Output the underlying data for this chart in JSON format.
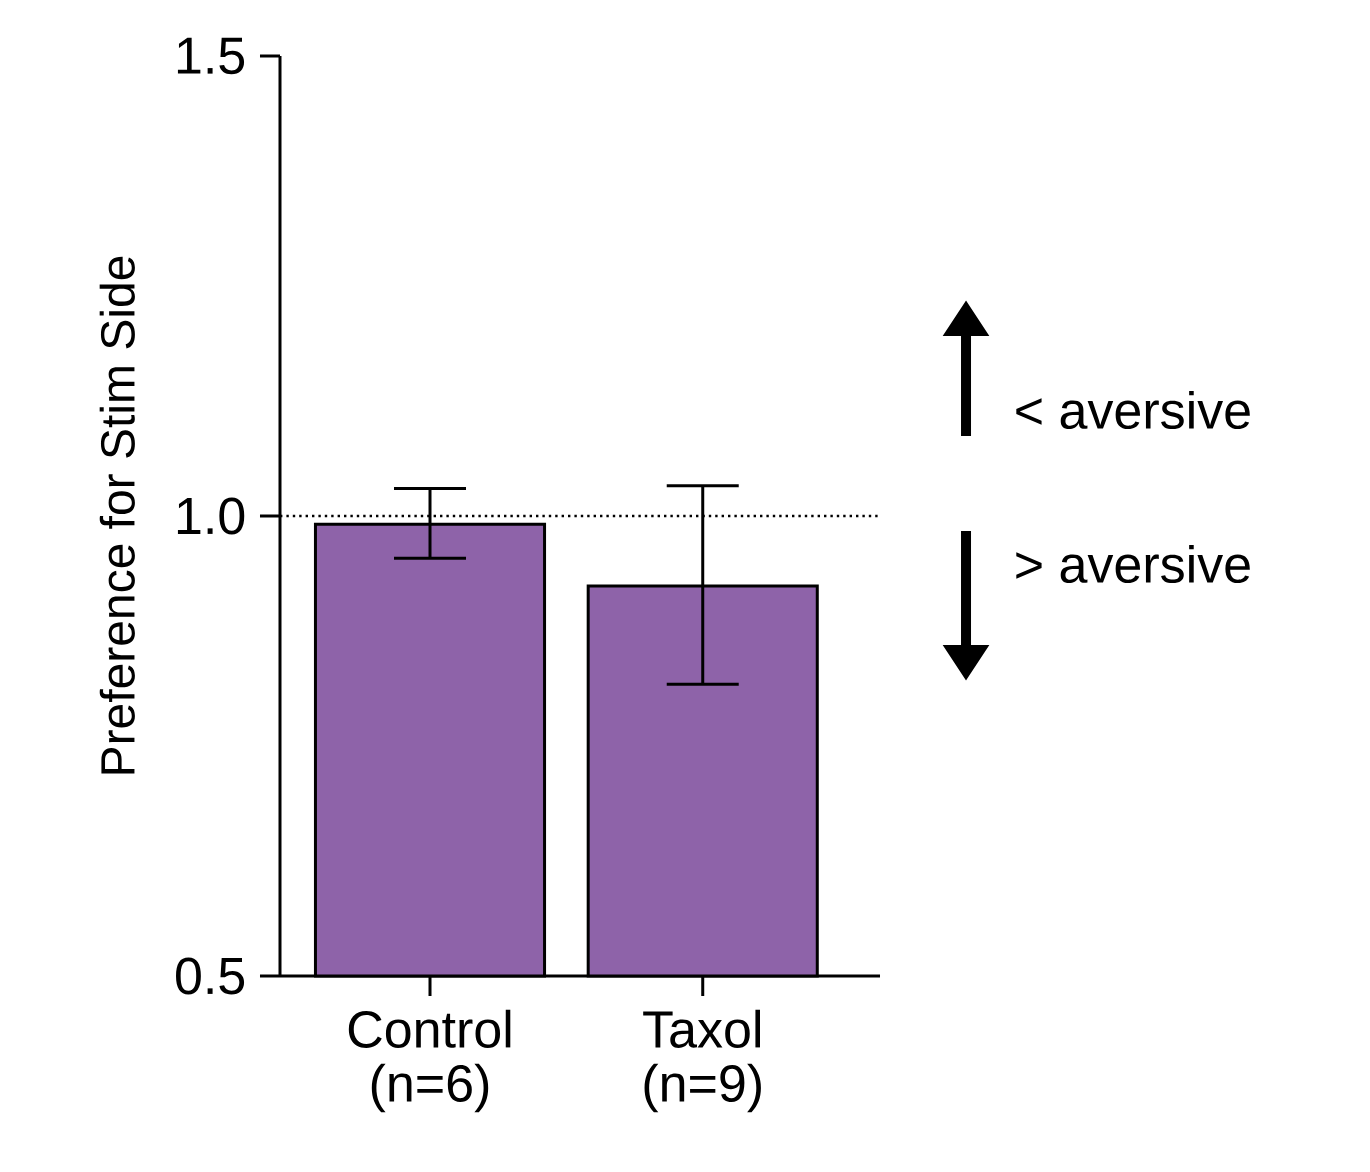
{
  "chart_data": {
    "type": "bar",
    "ylabel": "Preference for Stim Side",
    "categories": [
      "Control (n=6)",
      "Taxol (n=9)"
    ],
    "values": [
      0.991,
      0.924
    ],
    "errors": [
      [
        0.954,
        1.03
      ],
      [
        0.817,
        1.033
      ]
    ],
    "colors": [
      "#8e63a9",
      "#8e63a9"
    ],
    "ylim": [
      0.5,
      1.5
    ],
    "yticks": [
      0.5,
      {
        "value": 1.0,
        "label": "1.0"
      },
      1.5
    ],
    "ref_lines": [
      {
        "axis": "y",
        "value": 1.0,
        "line_style": "dotted",
        "color": "#000000"
      }
    ],
    "annotations": [
      "< aversive",
      "> aversive"
    ]
  }
}
